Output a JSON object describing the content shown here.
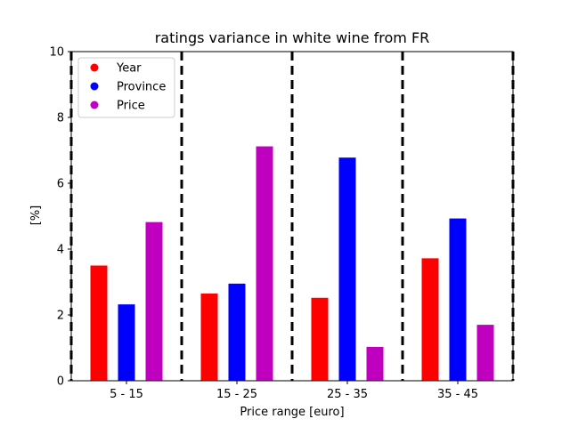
{
  "chart_data": {
    "type": "bar",
    "title": "ratings variance in white wine from FR",
    "xlabel": "Price range [euro]",
    "ylabel": "[%]",
    "ylim": [
      0,
      10
    ],
    "yticks": [
      "0",
      "2",
      "4",
      "6",
      "8",
      "10"
    ],
    "categories": [
      "5 - 15",
      "15 - 25",
      "25 - 35",
      "35 - 45"
    ],
    "series": [
      {
        "name": "Year",
        "color": "#ff0000",
        "values": [
          3.5,
          2.65,
          2.52,
          3.72
        ]
      },
      {
        "name": "Province",
        "color": "#0000ff",
        "values": [
          2.32,
          2.95,
          6.78,
          4.93
        ]
      },
      {
        "name": "Price",
        "color": "#bf00bf",
        "values": [
          4.82,
          7.12,
          1.03,
          1.7
        ]
      }
    ],
    "legend_position": "top-left",
    "grid": false,
    "group_separators": "dashed"
  }
}
